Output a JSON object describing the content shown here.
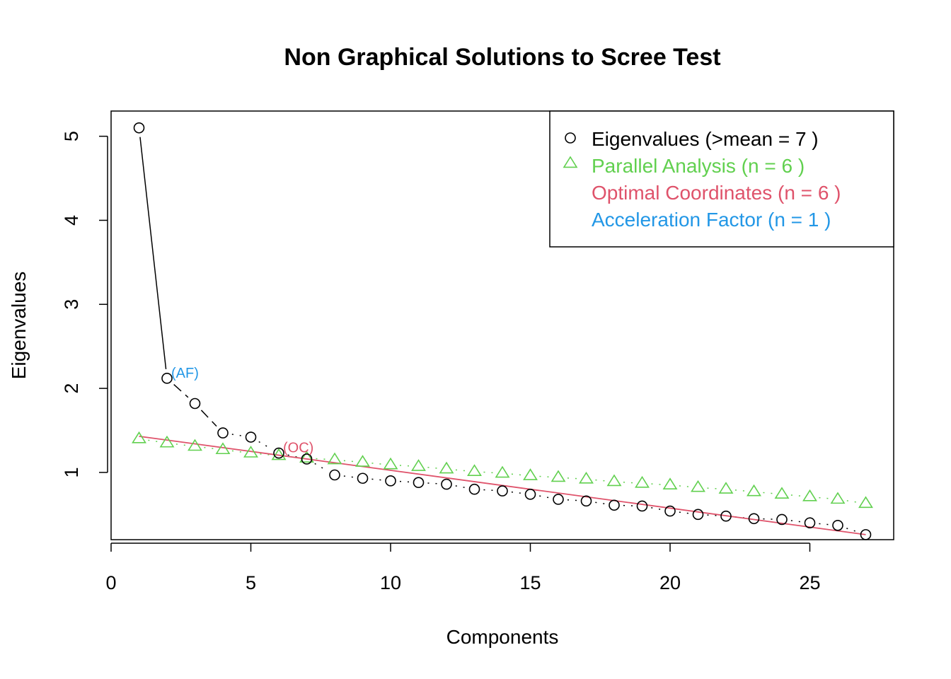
{
  "chart_data": {
    "type": "scatter",
    "title": "Non Graphical Solutions to Scree Test",
    "xlabel": "Components",
    "ylabel": "Eigenvalues",
    "xlim": [
      0,
      28
    ],
    "ylim": [
      0.2,
      5.3
    ],
    "x_ticks": [
      "0",
      "5",
      "10",
      "15",
      "20",
      "25"
    ],
    "y_ticks": [
      "1",
      "2",
      "3",
      "4",
      "5"
    ],
    "legend_position": "top-right",
    "colors": {
      "eigen": "#000000",
      "parallel": "#61D04F",
      "optimal": "#DF536B",
      "acceleration": "#2297E6"
    },
    "series": [
      {
        "name": "Eigenvalues (>mean  =  7 )",
        "marker": "circle",
        "x": [
          1,
          2,
          3,
          4,
          5,
          6,
          7,
          8,
          9,
          10,
          11,
          12,
          13,
          14,
          15,
          16,
          17,
          18,
          19,
          20,
          21,
          22,
          23,
          24,
          25,
          26,
          27
        ],
        "values": [
          5.1,
          2.12,
          1.82,
          1.47,
          1.42,
          1.23,
          1.16,
          0.97,
          0.93,
          0.9,
          0.88,
          0.86,
          0.8,
          0.78,
          0.74,
          0.68,
          0.66,
          0.61,
          0.6,
          0.54,
          0.5,
          0.48,
          0.45,
          0.44,
          0.4,
          0.37,
          0.26
        ]
      },
      {
        "name": "Parallel Analysis (n =  6 )",
        "marker": "triangle",
        "x": [
          1,
          2,
          3,
          4,
          5,
          6,
          7,
          8,
          9,
          10,
          11,
          12,
          13,
          14,
          15,
          16,
          17,
          18,
          19,
          20,
          21,
          22,
          23,
          24,
          25,
          26,
          27
        ],
        "values": [
          1.4,
          1.35,
          1.31,
          1.27,
          1.23,
          1.2,
          1.17,
          1.15,
          1.12,
          1.09,
          1.07,
          1.04,
          1.01,
          0.99,
          0.96,
          0.94,
          0.92,
          0.89,
          0.87,
          0.85,
          0.82,
          0.8,
          0.77,
          0.74,
          0.71,
          0.68,
          0.63
        ]
      }
    ],
    "optimal_coordinates_line": {
      "name": "Optimal Coordinates (n =  6 )",
      "x": [
        1,
        27
      ],
      "values": [
        1.43,
        0.26
      ]
    },
    "legend": [
      {
        "label": "Eigenvalues (>mean  =  7 )",
        "marker": "circle"
      },
      {
        "label": "Parallel Analysis (n =  6 )",
        "marker": "triangle"
      },
      {
        "label": "Optimal Coordinates (n =  6 )",
        "marker": "none"
      },
      {
        "label": "Acceleration Factor (n =  1 )",
        "marker": "none"
      }
    ],
    "annotations": [
      {
        "text": "(AF)",
        "x": 2,
        "y": 2.12
      },
      {
        "text": "(OC)",
        "x": 6,
        "y": 1.23
      }
    ]
  }
}
